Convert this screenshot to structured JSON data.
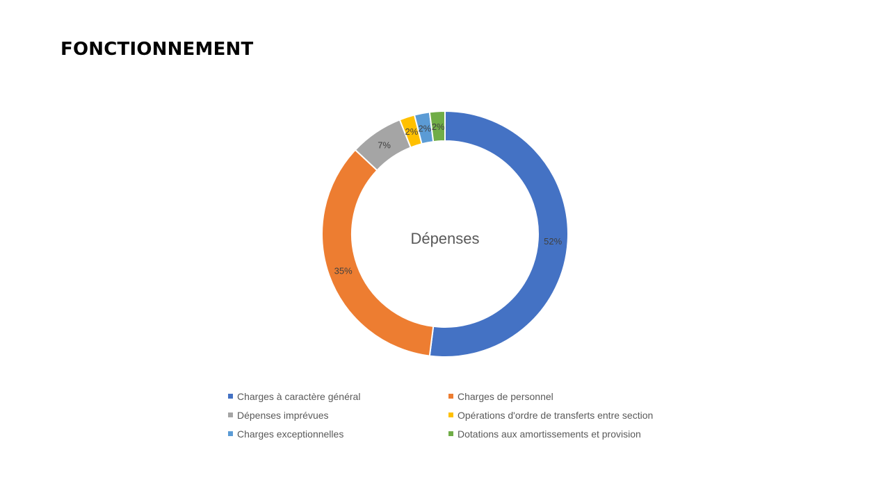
{
  "slide": {
    "title": "FONCTIONNEMENT"
  },
  "chart_data": {
    "type": "pie",
    "subtype": "doughnut",
    "title": "Dépenses",
    "label_format": "percent",
    "legend_position": "bottom",
    "categories": [
      "Charges à caractère général",
      "Charges de personnel",
      "Dépenses imprévues",
      "Opérations d'ordre de transferts entre section",
      "Charges exceptionnelles",
      "Dotations aux amortissements et provision"
    ],
    "values": [
      52,
      35,
      7,
      2,
      2,
      2
    ],
    "colors": [
      "#4472C4",
      "#ED7D31",
      "#A5A5A5",
      "#FFC000",
      "#5B9BD5",
      "#70AD47"
    ]
  }
}
